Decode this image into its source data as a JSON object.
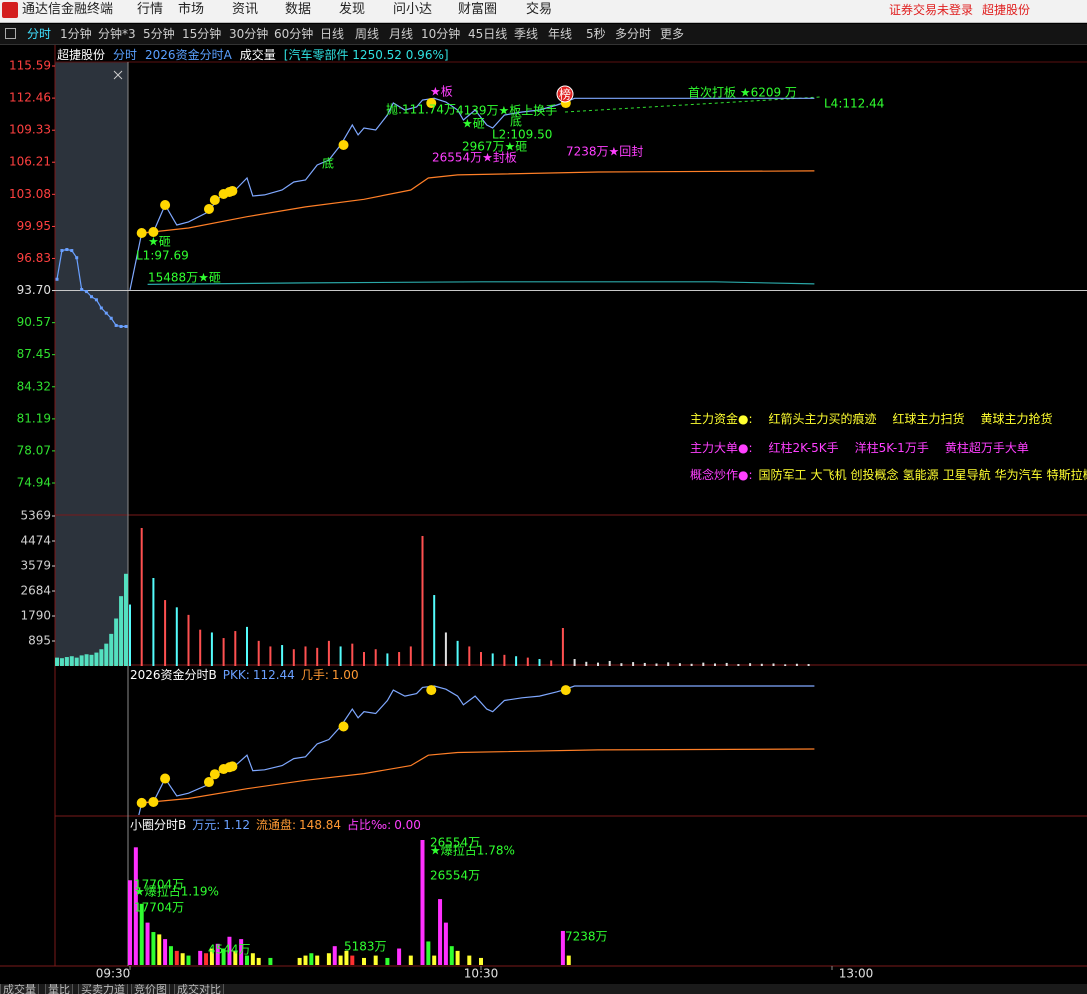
{
  "app": {
    "title": "通达信金融终端",
    "menu": [
      "行情",
      "市场",
      "资讯",
      "数据",
      "发现",
      "问小达",
      "财富圈",
      "交易"
    ],
    "status": [
      "证券交易未登录",
      "超捷股份"
    ],
    "tabs": [
      "分时",
      "1分钟",
      "分钟*3",
      "5分钟",
      "15分钟",
      "30分钟",
      "60分钟",
      "日线",
      "周线",
      "月线",
      "10分钟",
      "45日线",
      "季线",
      "年线",
      "5秒",
      "多分时",
      "更多"
    ],
    "info": [
      "超捷股份",
      "分时",
      "2026资金分时A",
      "成交量",
      "[汽车零部件 1250.52 0.96%]"
    ],
    "info_colors": [
      "#ffffff",
      "#5aa0ff",
      "#5aa0ff",
      "#ffffff",
      "#30e0e0"
    ],
    "legend": [
      {
        "head": "主力资金●:",
        "head_color": "#ffff30",
        "item_color": "#ffff30",
        "items": [
          "红箭头主力买的痕迹",
          "红球主力扫货",
          "黄球主力抢货"
        ]
      },
      {
        "head": "主力大单●:",
        "head_color": "#ff40ff",
        "item_color": "#ff40ff",
        "items": [
          "红柱2K-5K手",
          "洋柱5K-1万手",
          "黄柱超万手大单"
        ]
      },
      {
        "head": "概念炒作●:",
        "head_color": "#ff40ff",
        "item_color": "#ffff30",
        "items": [
          "国防军工",
          "大飞机",
          "创投概念",
          "氢能源",
          "卫星导航",
          "华为汽车",
          "特斯拉概念"
        ]
      }
    ],
    "bottom_tabs": [
      "成交量",
      "量比",
      "买卖力道",
      "竞价图",
      "成交对比"
    ]
  },
  "chart_data": [
    {
      "type": "line",
      "ylim": [
        74.94,
        115.59
      ],
      "yticks": [
        115.59,
        112.46,
        109.33,
        106.21,
        103.08,
        99.95,
        96.83,
        {
          "value": 93.7,
          "label": "93.70"
        },
        90.57,
        87.45,
        84.32,
        81.19,
        78.07,
        74.94
      ],
      "auction_values": [
        94.8,
        97.6,
        97.7,
        97.6,
        96.9,
        93.8,
        93.6,
        93.1,
        92.8,
        92.0,
        91.5,
        91.0,
        90.3,
        90.2,
        90.2
      ],
      "auction_color": "#6aa0ff",
      "series": [
        {
          "color": "#7fa8ff",
          "x": [
            0,
            2,
            4,
            6,
            8,
            10,
            13,
            15,
            16,
            18,
            20,
            21,
            23,
            26,
            28,
            30,
            32,
            34,
            36,
            38,
            39,
            40,
            42,
            44,
            45,
            47,
            49,
            50,
            52,
            54,
            56,
            57,
            59,
            61,
            62,
            64,
            67,
            70,
            73,
            74,
            76,
            117
          ],
          "values": [
            93.76,
            99.31,
            99.41,
            102.04,
            100.09,
            100.39,
            101.26,
            102.53,
            103.31,
            103.5,
            104.67,
            102.92,
            103.02,
            103.5,
            104.28,
            104.48,
            105.94,
            106.43,
            107.89,
            109.84,
            108.87,
            109.55,
            109.35,
            110.81,
            111.98,
            111.3,
            111.59,
            112.28,
            112.44,
            112.08,
            111.3,
            110.33,
            111.3,
            109.84,
            109.55,
            110.81,
            111.11,
            111.3,
            111.79,
            111.98,
            112.44,
            112.44
          ]
        },
        {
          "color": "#ff7f27",
          "x": [
            2,
            10,
            20,
            30,
            40,
            48,
            51,
            56,
            80,
            117
          ],
          "values": [
            99.3,
            99.8,
            100.9,
            101.85,
            102.6,
            103.5,
            104.67,
            104.97,
            105.26,
            105.36
          ]
        },
        {
          "color": "#2aa7a7",
          "x": [
            3,
            30,
            60,
            100,
            117
          ],
          "values": [
            94.3,
            94.45,
            94.55,
            94.55,
            94.35
          ]
        }
      ],
      "markers": {
        "color": "#ffd700",
        "x": [
          2,
          4,
          6,
          13.5,
          14.5,
          16,
          17,
          17.5,
          36.5,
          51.5,
          74.5
        ],
        "values": [
          99.31,
          99.41,
          102.04,
          101.65,
          102.53,
          103.11,
          103.31,
          103.41,
          107.89,
          111.98,
          111.98
        ]
      },
      "annotations": [
        {
          "text": "★板",
          "color": "#ff40ff"
        },
        {
          "text": "抛:111.74万",
          "color": "#30ff30"
        },
        {
          "text": "4139万★板上换手",
          "color": "#30ff30"
        },
        {
          "text": "★砸",
          "color": "#30ff30"
        },
        {
          "text": "底",
          "color": "#30ff30"
        },
        {
          "text": "L2:109.50",
          "color": "#30ff30"
        },
        {
          "text": "2967万★砸",
          "color": "#30ff30"
        },
        {
          "text": "26554万★封板",
          "color": "#ff40ff"
        },
        {
          "text": "7238万★回封",
          "color": "#ff40ff"
        },
        {
          "text": "首次打板 ★6209 万",
          "color": "#30ff30"
        },
        {
          "text": "L4:112.44",
          "color": "#30ff30"
        },
        {
          "text": "底",
          "color": "#30ff30"
        },
        {
          "text": "★砸",
          "color": "#30ff30"
        },
        {
          "text": "L1:97.69",
          "color": "#30ff30"
        },
        {
          "text": "15488万★砸",
          "color": "#30ff30"
        }
      ],
      "badge": "榜"
    },
    {
      "type": "bar",
      "ylim": [
        0,
        5369
      ],
      "yticks": [
        5369,
        4474,
        3579,
        2684,
        1790,
        895
      ],
      "x": [
        0,
        2,
        4,
        6,
        8,
        10,
        12,
        14,
        16,
        18,
        20,
        22,
        24,
        26,
        28,
        30,
        32,
        34,
        36,
        38,
        40,
        42,
        44,
        46,
        48,
        50,
        52,
        54,
        56,
        58,
        60,
        62,
        64,
        66,
        68,
        70,
        72,
        74,
        76,
        78,
        80,
        82,
        84,
        86,
        88,
        90,
        92,
        94,
        96,
        98,
        100,
        102,
        104,
        106,
        108,
        110,
        112,
        114,
        116
      ],
      "values": [
        2200,
        4940,
        3150,
        2360,
        2100,
        1830,
        1300,
        1200,
        1000,
        1250,
        1400,
        900,
        700,
        750,
        600,
        700,
        650,
        900,
        700,
        800,
        500,
        600,
        450,
        500,
        700,
        4654,
        2540,
        1200,
        900,
        700,
        500,
        450,
        400,
        350,
        300,
        250,
        200,
        1360,
        250,
        150,
        120,
        180,
        100,
        140,
        110,
        90,
        130,
        100,
        80,
        120,
        90,
        110,
        70,
        100,
        80,
        90,
        60,
        80,
        70
      ],
      "colors": [
        "#54fcfc",
        "#ff5050",
        "#54fcfc",
        "#ff5050",
        "#54fcfc",
        "#ff5050",
        "#ff5050",
        "#54fcfc",
        "#ff5050",
        "#ff5050",
        "#54fcfc",
        "#ff5050",
        "#ff5050",
        "#54fcfc",
        "#ff5050",
        "#ff5050",
        "#ff5050",
        "#ff5050",
        "#54fcfc",
        "#ff5050",
        "#ff5050",
        "#ff5050",
        "#54fcfc",
        "#ff5050",
        "#ff5050",
        "#ff5050",
        "#54fcfc",
        "#e0e0e0",
        "#54fcfc",
        "#ff5050",
        "#ff5050",
        "#54fcfc",
        "#ff5050",
        "#54fcfc",
        "#ff5050",
        "#54fcfc",
        "#ff5050",
        "#ff5050",
        "#e0e0e0",
        "#e0e0e0",
        "#e0e0e0",
        "#e0e0e0",
        "#e0e0e0",
        "#e0e0e0",
        "#e0e0e0",
        "#e0e0e0",
        "#e0e0e0",
        "#e0e0e0",
        "#e0e0e0",
        "#e0e0e0",
        "#e0e0e0",
        "#e0e0e0",
        "#e0e0e0",
        "#e0e0e0",
        "#e0e0e0",
        "#e0e0e0",
        "#e0e0e0",
        "#e0e0e0",
        "#e0e0e0"
      ],
      "auction_values": [
        300,
        280,
        320,
        350,
        300,
        380,
        420,
        400,
        480,
        600,
        800,
        1150,
        1700,
        2500,
        3300
      ],
      "auction_color": "#54e0c0"
    },
    {
      "type": "line",
      "title": "2026资金分时B",
      "labels": [
        "PKK:",
        "几手:"
      ],
      "values": [
        112.44,
        1
      ],
      "value_labels": [
        "112.44",
        "1.00"
      ],
      "label_colors": [
        "#6aa0ff",
        "#ff9933"
      ]
    },
    {
      "type": "bar",
      "title": "小圈分时B",
      "labels": [
        "万元:",
        "流通盘:",
        "占比‰:"
      ],
      "values": [
        1.12,
        148.84,
        0
      ],
      "value_labels": [
        "1.12",
        "148.84",
        "0.00"
      ],
      "label_colors": [
        "#6aa0ff",
        "#ff9933",
        "#ff40ff"
      ],
      "bars": {
        "x": [
          0,
          1,
          2,
          3,
          4,
          5,
          6,
          7,
          8,
          9,
          10,
          12,
          13,
          14,
          15,
          16,
          17,
          18,
          19,
          20,
          21,
          22,
          24,
          29,
          30,
          31,
          32,
          34,
          35,
          36,
          37,
          38,
          40,
          42,
          44,
          46,
          48,
          50,
          51,
          52,
          53,
          54,
          55,
          56,
          58,
          60,
          74,
          75
        ],
        "values": [
          18000,
          25000,
          13000,
          9000,
          7000,
          6500,
          5500,
          4000,
          3000,
          2500,
          2000,
          3000,
          2500,
          3500,
          4500,
          3500,
          6000,
          3000,
          5500,
          2000,
          2500,
          1500,
          1500,
          1500,
          2000,
          2500,
          2000,
          2500,
          4000,
          2000,
          3000,
          2000,
          1500,
          2000,
          1500,
          3500,
          2000,
          26554,
          5000,
          2000,
          14000,
          9000,
          4000,
          3000,
          2000,
          1500,
          7238,
          2000
        ],
        "colors": [
          "#ff30ff",
          "#ff30ff",
          "#30ff30",
          "#ff30ff",
          "#30ff30",
          "#ffff30",
          "#ff30ff",
          "#30ff30",
          "#ff3030",
          "#ffff30",
          "#30ff30",
          "#ff30ff",
          "#ff3030",
          "#ffff30",
          "#ff30ff",
          "#30ff30",
          "#ff30ff",
          "#ffff30",
          "#ff30ff",
          "#30ff30",
          "#ffff30",
          "#ffff30",
          "#30ff30",
          "#ffff30",
          "#ffff30",
          "#30ff30",
          "#ffff30",
          "#ffff30",
          "#ff30ff",
          "#ffff30",
          "#ffff30",
          "#ff3030",
          "#ffff30",
          "#ffff30",
          "#30ff30",
          "#ff30ff",
          "#ffff30",
          "#ff30ff",
          "#30ff30",
          "#ffff30",
          "#ff30ff",
          "#ff30ff",
          "#30ff30",
          "#ffff30",
          "#ffff30",
          "#ffff30",
          "#ff30ff",
          "#ffff30"
        ]
      },
      "annotations": [
        {
          "text": "17704万",
          "color": "#30ff30"
        },
        {
          "text": "★爆拉占1.19%",
          "color": "#30ff30"
        },
        {
          "text": "17704万",
          "color": "#30ff30"
        },
        {
          "text": "4544万",
          "color": "#30ff30"
        },
        {
          "text": "5183万",
          "color": "#30ff30"
        },
        {
          "text": "26554万",
          "color": "#30ff30"
        },
        {
          "text": "★爆拉占1.78%",
          "color": "#30ff30"
        },
        {
          "text": "26554万",
          "color": "#30ff30"
        },
        {
          "text": "7238万",
          "color": "#30ff30"
        }
      ],
      "xticks": [
        {
          "value": 0,
          "label": "09:30"
        },
        {
          "value": 60,
          "label": "10:30"
        },
        {
          "value": 120,
          "label": "13:00"
        }
      ]
    }
  ]
}
